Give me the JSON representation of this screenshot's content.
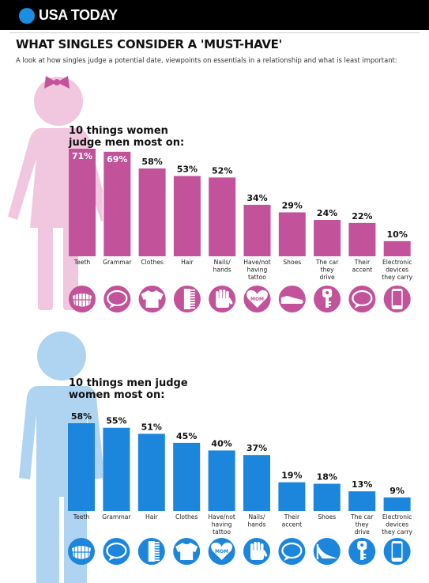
{
  "header": {
    "brand": "USA TODAY",
    "brand_color": "#1a8ee1",
    "title": "WHAT SINGLES CONSIDER A 'MUST-HAVE'",
    "subtitle": "A look at how singles judge a potential date, viewpoints on essentials in a relationship and what is least important:"
  },
  "colors": {
    "women_bar": "#c2529a",
    "women_figure": "#f1c6df",
    "men_bar": "#1c86dc",
    "men_figure": "#aed4f2"
  },
  "chart_data": [
    {
      "type": "bar",
      "title": "10 things women judge men most on:",
      "title_lines": [
        "10 things women",
        "judge men most on:"
      ],
      "categories": [
        "Teeth",
        "Grammar",
        "Clothes",
        "Hair",
        "Nails/ hands",
        "Have/not having tattoo",
        "Shoes",
        "The car they drive",
        "Their accent",
        "Electronic devices they carry"
      ],
      "category_lines": [
        [
          "Teeth"
        ],
        [
          "Grammar"
        ],
        [
          "Clothes"
        ],
        [
          "Hair"
        ],
        [
          "Nails/",
          "hands"
        ],
        [
          "Have/not",
          "having",
          "tattoo"
        ],
        [
          "Shoes"
        ],
        [
          "The car",
          "they",
          "drive"
        ],
        [
          "Their",
          "accent"
        ],
        [
          "Electronic",
          "devices",
          "they carry"
        ]
      ],
      "values": [
        71,
        69,
        58,
        53,
        52,
        34,
        29,
        24,
        22,
        10
      ],
      "labels": [
        "71%",
        "69%",
        "58%",
        "53%",
        "52%",
        "34%",
        "29%",
        "24%",
        "22%",
        "10%"
      ],
      "icons": [
        "teeth-icon",
        "speech-bubble-icon",
        "shirt-icon",
        "comb-icon",
        "hand-icon",
        "mom-tattoo-icon",
        "shoe-icon",
        "car-key-icon",
        "speech-bubble-icon",
        "phone-icon"
      ],
      "ylim": [
        0,
        71
      ]
    },
    {
      "type": "bar",
      "title": "10 things men judge women most on:",
      "title_lines": [
        "10 things men judge",
        "women most on:"
      ],
      "categories": [
        "Teeth",
        "Grammar",
        "Hair",
        "Clothes",
        "Have/not having tattoo",
        "Nails/ hands",
        "Their accent",
        "Shoes",
        "The car they drive",
        "Electronic devices they carry"
      ],
      "category_lines": [
        [
          "Teeth"
        ],
        [
          "Grammar"
        ],
        [
          "Hair"
        ],
        [
          "Clothes"
        ],
        [
          "Have/not",
          "having",
          "tattoo"
        ],
        [
          "Nails/",
          "hands"
        ],
        [
          "Their",
          "accent"
        ],
        [
          "Shoes"
        ],
        [
          "The car",
          "they",
          "drive"
        ],
        [
          "Electronic",
          "devices",
          "they carry"
        ]
      ],
      "values": [
        58,
        55,
        51,
        45,
        40,
        37,
        19,
        18,
        13,
        9
      ],
      "labels": [
        "58%",
        "55%",
        "51%",
        "45%",
        "40%",
        "37%",
        "19%",
        "18%",
        "13%",
        "9%"
      ],
      "icons": [
        "teeth-icon",
        "speech-bubble-icon",
        "comb-icon",
        "shirt-icon",
        "mom-tattoo-icon",
        "hand-icon",
        "speech-bubble-icon",
        "high-heel-icon",
        "car-key-icon",
        "phone-icon"
      ],
      "ylim": [
        0,
        58
      ]
    }
  ]
}
